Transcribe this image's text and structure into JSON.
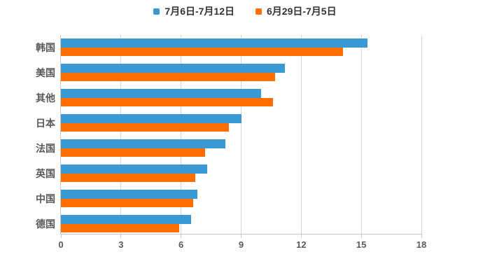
{
  "legend": {
    "items": [
      {
        "label": "7月6日-7月12日",
        "color": "#3999d5"
      },
      {
        "label": "6月29日-7月5日",
        "color": "#ff6e00"
      }
    ]
  },
  "chart_data": {
    "type": "bar",
    "orientation": "horizontal",
    "title": "",
    "xlabel": "",
    "ylabel": "",
    "categories": [
      "韩国",
      "美国",
      "其他",
      "日本",
      "法国",
      "英国",
      "中国",
      "德国"
    ],
    "series": [
      {
        "name": "7月6日-7月12日",
        "color": "#3999d5",
        "values": [
          15.3,
          11.2,
          10.0,
          9.0,
          8.2,
          7.3,
          6.8,
          6.5
        ]
      },
      {
        "name": "6月29日-7月5日",
        "color": "#ff6e00",
        "values": [
          14.1,
          10.7,
          10.6,
          8.4,
          7.2,
          6.7,
          6.6,
          5.9
        ]
      }
    ],
    "xlim": [
      0,
      18
    ],
    "xticks": [
      0,
      3,
      6,
      9,
      12,
      15,
      18
    ],
    "grid": true,
    "legend_position": "top",
    "colors": {
      "grid": "#d6d6d6",
      "axis": "#c9c9c9",
      "tick_label": "#595959",
      "category_label": "#595959",
      "legend_text": "#333333",
      "background": "#ffffff"
    }
  }
}
